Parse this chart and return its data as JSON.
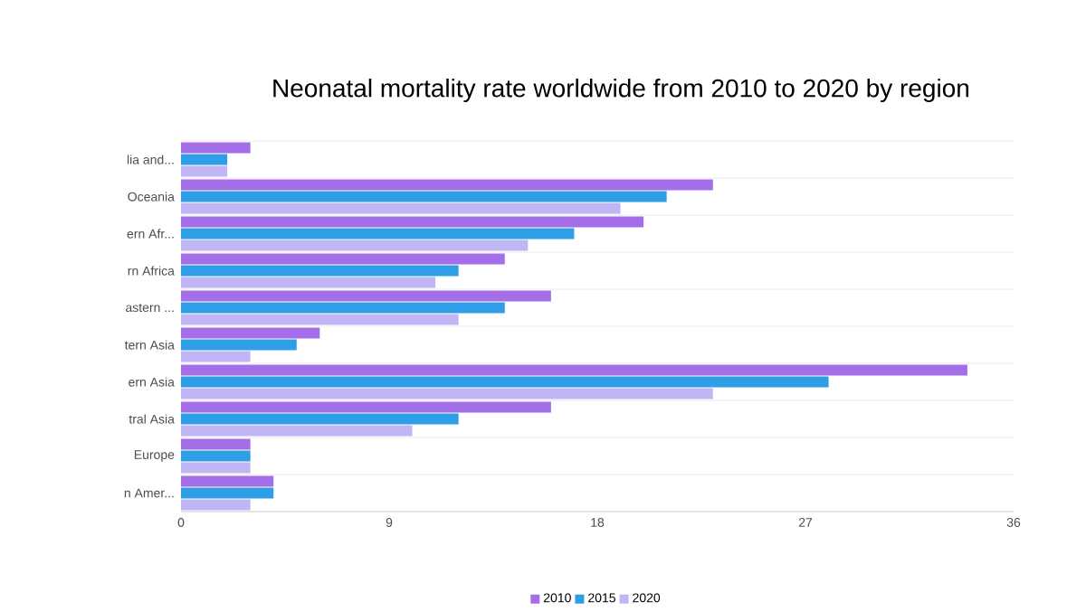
{
  "chart_data": {
    "type": "bar",
    "orientation": "horizontal",
    "title": "Neonatal mortality rate worldwide from 2010 to 2020 by region",
    "categories": [
      "lia and...",
      "Oceania",
      "ern Afr...",
      "rn Africa",
      "astern ...",
      "tern Asia",
      "ern Asia",
      "tral Asia",
      "Europe",
      "n Amer..."
    ],
    "series": [
      {
        "name": "2010",
        "color": "#a46ee8",
        "values": [
          3,
          23,
          20,
          14,
          16,
          6,
          34,
          16,
          3,
          4
        ]
      },
      {
        "name": "2015",
        "color": "#2e9fe6",
        "values": [
          2,
          21,
          17,
          12,
          14,
          5,
          28,
          12,
          3,
          4
        ]
      },
      {
        "name": "2020",
        "color": "#c0b6f5",
        "values": [
          2,
          19,
          15,
          11,
          12,
          3,
          23,
          10,
          3,
          3
        ]
      }
    ],
    "xlim": [
      0,
      36
    ],
    "xticks": [
      0,
      9,
      18,
      27,
      36
    ],
    "grid": "y",
    "legend": "bottom"
  }
}
